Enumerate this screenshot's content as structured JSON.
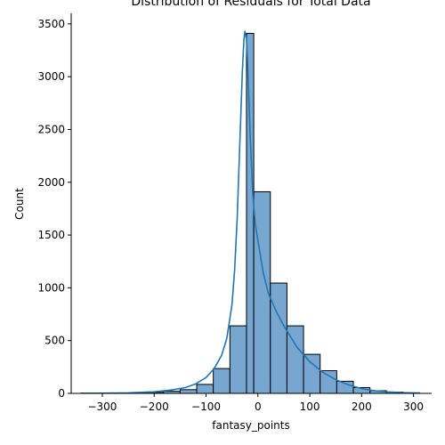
{
  "chart_data": {
    "type": "bar",
    "title": "Distribution of Residuals for Total Data",
    "xlabel": "fantasy_points",
    "ylabel": "Count",
    "xlim": [
      -360,
      335
    ],
    "ylim": [
      0,
      3600
    ],
    "x_ticks": [
      -300,
      -200,
      -100,
      0,
      100,
      200,
      300
    ],
    "x_tick_labels": [
      "−300",
      "−200",
      "−100",
      "0",
      "100",
      "200",
      "300"
    ],
    "y_ticks": [
      0,
      500,
      1000,
      1500,
      2000,
      2500,
      3000,
      3500
    ],
    "y_tick_labels": [
      "0",
      "500",
      "1000",
      "1500",
      "2000",
      "2500",
      "3000",
      "3500"
    ],
    "bins": [
      {
        "start": -342,
        "end": -310,
        "count": 2
      },
      {
        "start": -310,
        "end": -278,
        "count": 1
      },
      {
        "start": -278,
        "end": -246,
        "count": 2
      },
      {
        "start": -246,
        "end": -214,
        "count": 5
      },
      {
        "start": -214,
        "end": -182,
        "count": 10
      },
      {
        "start": -182,
        "end": -150,
        "count": 20
      },
      {
        "start": -150,
        "end": -118,
        "count": 35
      },
      {
        "start": -118,
        "end": -86,
        "count": 85
      },
      {
        "start": -86,
        "end": -54,
        "count": 235
      },
      {
        "start": -54,
        "end": -22,
        "count": 640
      },
      {
        "start": -22,
        "end": -8,
        "count": 3410
      },
      {
        "start": -8,
        "end": 24,
        "count": 1910
      },
      {
        "start": 24,
        "end": 56,
        "count": 1045
      },
      {
        "start": 56,
        "end": 88,
        "count": 640
      },
      {
        "start": 88,
        "end": 120,
        "count": 370
      },
      {
        "start": 120,
        "end": 152,
        "count": 215
      },
      {
        "start": 152,
        "end": 184,
        "count": 115
      },
      {
        "start": 184,
        "end": 216,
        "count": 55
      },
      {
        "start": 216,
        "end": 248,
        "count": 25
      },
      {
        "start": 248,
        "end": 280,
        "count": 12
      },
      {
        "start": 280,
        "end": 312,
        "count": 5
      }
    ],
    "kde": {
      "x": [
        -342,
        -300,
        -250,
        -200,
        -170,
        -140,
        -120,
        -100,
        -85,
        -70,
        -60,
        -50,
        -45,
        -40,
        -35,
        -30,
        -27,
        -25,
        -22,
        -20,
        -15,
        -10,
        -5,
        0,
        10,
        20,
        35,
        50,
        75,
        100,
        125,
        150,
        175,
        200,
        225,
        250,
        280,
        312
      ],
      "y": [
        2,
        2,
        5,
        15,
        30,
        55,
        90,
        150,
        230,
        360,
        520,
        840,
        1160,
        1650,
        2350,
        3050,
        3350,
        3430,
        3350,
        3150,
        2450,
        1900,
        1600,
        1450,
        1150,
        950,
        780,
        640,
        440,
        300,
        200,
        130,
        80,
        45,
        25,
        14,
        7,
        3
      ]
    },
    "colors": {
      "bar_fill": "#77a7d0",
      "bar_edge": "#000000",
      "kde_line": "#1f77b4"
    },
    "grid": false
  }
}
